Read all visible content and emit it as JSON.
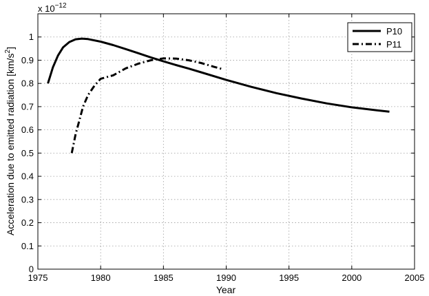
{
  "chart_data": {
    "type": "line",
    "xlabel": "Year",
    "ylabel": "Acceleration due to emitted radiation [km/s",
    "ylabel_sup": "2",
    "ylabel_close": "]",
    "exponent_base": "x 10",
    "exponent_power": "−12",
    "xlim": [
      1975,
      2005
    ],
    "ylim": [
      0,
      1.1
    ],
    "xticks": [
      1975,
      1980,
      1985,
      1990,
      1995,
      2000,
      2005
    ],
    "yticks": [
      0,
      0.1,
      0.2,
      0.3,
      0.4,
      0.5,
      0.6,
      0.7,
      0.8,
      0.9,
      1
    ],
    "xtick_labels": [
      "1975",
      "1980",
      "1985",
      "1990",
      "1995",
      "2000",
      "2005"
    ],
    "ytick_labels": [
      "0",
      "0.1",
      "0.2",
      "0.3",
      "0.4",
      "0.5",
      "0.6",
      "0.7",
      "0.8",
      "0.9",
      "1"
    ],
    "grid": true,
    "legend_position": "top-right",
    "series": [
      {
        "name": "P10",
        "style": "solid",
        "color": "#000000",
        "x": [
          1975.8,
          1976.2,
          1976.6,
          1977.0,
          1977.5,
          1978.0,
          1978.5,
          1979.0,
          1980.0,
          1981.0,
          1982.0,
          1983.0,
          1984.0,
          1985.0,
          1986.0,
          1987.0,
          1988.0,
          1990.0,
          1992.0,
          1994.0,
          1996.0,
          1998.0,
          2000.0,
          2002.0,
          2003.0
        ],
        "y": [
          0.8,
          0.87,
          0.92,
          0.955,
          0.978,
          0.99,
          0.993,
          0.991,
          0.98,
          0.965,
          0.948,
          0.93,
          0.912,
          0.895,
          0.879,
          0.864,
          0.848,
          0.815,
          0.785,
          0.758,
          0.735,
          0.714,
          0.697,
          0.684,
          0.678
        ]
      },
      {
        "name": "P11",
        "style": "dashdot",
        "color": "#000000",
        "x": [
          1977.7,
          1978.0,
          1978.3,
          1978.6,
          1979.0,
          1979.5,
          1980.0,
          1981.0,
          1982.0,
          1983.0,
          1984.0,
          1985.0,
          1986.0,
          1987.0,
          1988.0,
          1989.0,
          1989.8
        ],
        "y": [
          0.5,
          0.58,
          0.64,
          0.7,
          0.75,
          0.79,
          0.82,
          0.835,
          0.865,
          0.885,
          0.9,
          0.908,
          0.907,
          0.9,
          0.888,
          0.872,
          0.86
        ]
      }
    ]
  }
}
